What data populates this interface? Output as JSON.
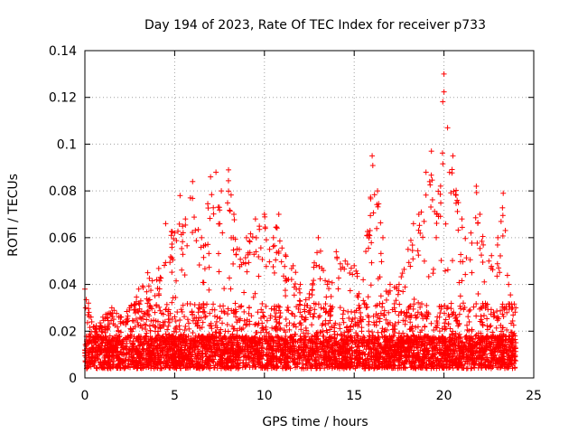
{
  "chart_data": {
    "type": "scatter",
    "title": "Day 194 of 2023, Rate Of TEC Index for receiver p733",
    "xlabel": "GPS time / hours",
    "ylabel": "ROTI / TECUs",
    "xlim": [
      0,
      25
    ],
    "ylim": [
      0,
      0.14
    ],
    "xticks": [
      "0",
      "5",
      "10",
      "15",
      "20",
      "25"
    ],
    "yticks": [
      "0",
      "0.02",
      "0.04",
      "0.06",
      "0.08",
      "0.1",
      "0.12",
      "0.14"
    ],
    "grid": true,
    "marker": "plus",
    "color": "#ff0000",
    "envelope": {
      "x": [
        0.0,
        0.2,
        0.5,
        1.0,
        1.5,
        2.0,
        2.5,
        3.0,
        3.5,
        4.0,
        4.5,
        5.0,
        5.3,
        5.6,
        6.0,
        6.5,
        7.0,
        7.3,
        7.6,
        8.0,
        8.3,
        8.6,
        9.0,
        9.5,
        10.0,
        10.5,
        10.8,
        11.2,
        11.6,
        12.0,
        12.5,
        13.0,
        13.5,
        14.0,
        14.5,
        15.0,
        15.5,
        16.0,
        16.3,
        16.6,
        17.0,
        17.5,
        18.0,
        18.3,
        18.6,
        19.0,
        19.3,
        19.6,
        20.0,
        20.2,
        20.5,
        20.8,
        21.0,
        21.5,
        21.8,
        22.0,
        22.5,
        23.0,
        23.3,
        23.6,
        24.0
      ],
      "y": [
        0.038,
        0.032,
        0.022,
        0.026,
        0.03,
        0.026,
        0.03,
        0.038,
        0.045,
        0.042,
        0.066,
        0.062,
        0.078,
        0.068,
        0.084,
        0.06,
        0.086,
        0.088,
        0.08,
        0.089,
        0.07,
        0.055,
        0.06,
        0.068,
        0.07,
        0.06,
        0.07,
        0.052,
        0.048,
        0.04,
        0.036,
        0.06,
        0.04,
        0.054,
        0.05,
        0.048,
        0.042,
        0.095,
        0.08,
        0.06,
        0.04,
        0.04,
        0.055,
        0.066,
        0.07,
        0.088,
        0.097,
        0.07,
        0.13,
        0.107,
        0.095,
        0.075,
        0.068,
        0.062,
        0.082,
        0.07,
        0.05,
        0.06,
        0.079,
        0.04,
        0.03
      ]
    }
  }
}
